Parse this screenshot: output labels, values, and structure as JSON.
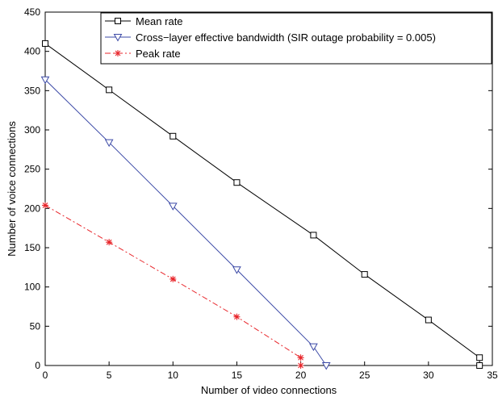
{
  "chart_data": {
    "type": "line",
    "title": "",
    "xlabel": "Number of video connections",
    "ylabel": "Number of voice connections",
    "xlim": [
      0,
      35
    ],
    "ylim": [
      0,
      450
    ],
    "xticks": [
      0,
      5,
      10,
      15,
      20,
      25,
      30,
      35
    ],
    "yticks": [
      0,
      50,
      100,
      150,
      200,
      250,
      300,
      350,
      400,
      450
    ],
    "grid": false,
    "legend_position": "top-right",
    "series": [
      {
        "name": "Mean rate",
        "color": "#000000",
        "marker": "square",
        "line_style": "solid",
        "x": [
          0,
          5,
          10,
          15,
          21,
          25,
          30,
          34,
          34
        ],
        "y": [
          410,
          351,
          292,
          233,
          166,
          116,
          58,
          10,
          0
        ]
      },
      {
        "name": "Cross−layer effective bandwidth (SIR outage probability = 0.005)",
        "color": "#3b49a6",
        "marker": "triangle-down",
        "line_style": "solid",
        "x": [
          0,
          5,
          10,
          15,
          21,
          22
        ],
        "y": [
          364,
          284,
          203,
          122,
          24,
          0
        ]
      },
      {
        "name": "Peak rate",
        "color": "#e8262b",
        "marker": "asterisk",
        "line_style": "dashdot",
        "x": [
          0,
          5,
          10,
          15,
          20,
          20
        ],
        "y": [
          204,
          157,
          110,
          62,
          10,
          0
        ]
      }
    ]
  }
}
